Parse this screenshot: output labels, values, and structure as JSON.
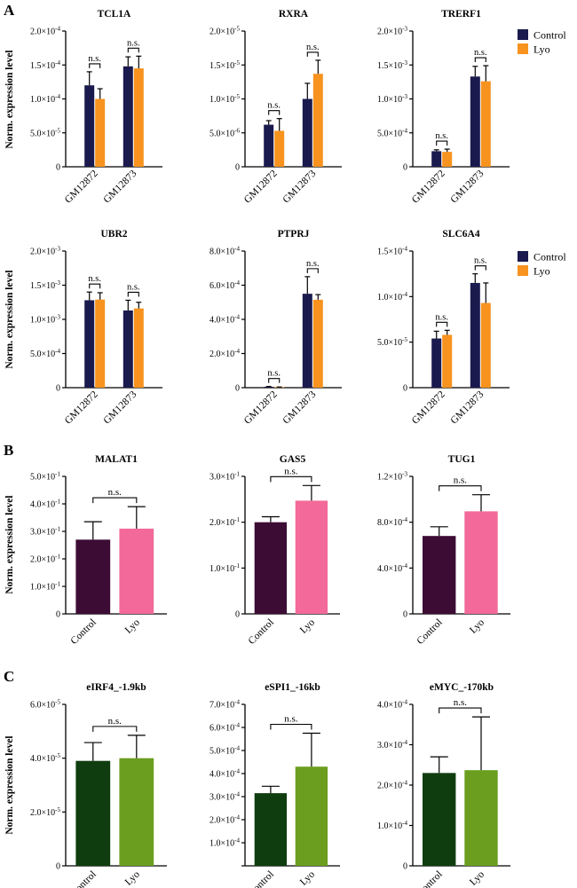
{
  "panel_labels": [
    "A",
    "B",
    "C"
  ],
  "ylabel": "Norm. expression level",
  "ns_label": "n.s.",
  "legend": {
    "control": "Control",
    "lyo": "Lyo"
  },
  "chart_data": [
    {
      "type": "bar",
      "panel": "A",
      "title": "TCL1A",
      "categories": [
        "GM12872",
        "GM12873"
      ],
      "ylabel": "Norm. expression level",
      "ylim": [
        0,
        0.0002
      ],
      "ticks": [
        [
          "0",
          0
        ],
        [
          "5.0×10-5",
          5e-05
        ],
        [
          "1.0×10-4",
          0.0001
        ],
        [
          "1.5×10-4",
          0.00015
        ],
        [
          "2.0×10-4",
          0.0002
        ]
      ],
      "series": [
        {
          "name": "Control",
          "color": "#1a1a4e",
          "values": [
            0.00012,
            0.000148
          ],
          "errors": [
            2e-05,
            1.4e-05
          ]
        },
        {
          "name": "Lyo",
          "color": "#f7931e",
          "values": [
            0.0001,
            0.000145
          ],
          "errors": [
            1.5e-05,
            1.8e-05
          ]
        }
      ],
      "annotations": [
        "n.s.",
        "n.s."
      ]
    },
    {
      "type": "bar",
      "panel": "A",
      "title": "RXRA",
      "categories": [
        "GM12872",
        "GM12873"
      ],
      "ylabel": "Norm. expression level",
      "ylim": [
        0,
        2e-05
      ],
      "ticks": [
        [
          "0",
          0
        ],
        [
          "5.0×10-6",
          5e-06
        ],
        [
          "1.0×10-5",
          1e-05
        ],
        [
          "1.5×10-5",
          1.5e-05
        ],
        [
          "2.0×10-5",
          2e-05
        ]
      ],
      "series": [
        {
          "name": "Control",
          "color": "#1a1a4e",
          "values": [
            6.2e-06,
            1e-05
          ],
          "errors": [
            6e-07,
            2.3e-06
          ]
        },
        {
          "name": "Lyo",
          "color": "#f7931e",
          "values": [
            5.3e-06,
            1.37e-05
          ],
          "errors": [
            1.8e-06,
            2e-06
          ]
        }
      ],
      "annotations": [
        "n.s.",
        "n.s."
      ]
    },
    {
      "type": "bar",
      "panel": "A",
      "title": "TRERF1",
      "categories": [
        "GM12872",
        "GM12873"
      ],
      "ylabel": "Norm. expression level",
      "ylim": [
        0,
        0.002
      ],
      "ticks": [
        [
          "0",
          0
        ],
        [
          "5.0×10-4",
          0.0005
        ],
        [
          "1.0×10-3",
          0.001
        ],
        [
          "1.5×10-3",
          0.0015
        ],
        [
          "2.0×10-3",
          0.002
        ]
      ],
      "series": [
        {
          "name": "Control",
          "color": "#1a1a4e",
          "values": [
            0.00023,
            0.00133
          ],
          "errors": [
            2e-05,
            0.00015
          ]
        },
        {
          "name": "Lyo",
          "color": "#f7931e",
          "values": [
            0.00022,
            0.00126
          ],
          "errors": [
            4e-05,
            0.00023
          ]
        }
      ],
      "annotations": [
        "n.s.",
        "n.s."
      ]
    },
    {
      "type": "bar",
      "panel": "A",
      "title": "UBR2",
      "categories": [
        "GM12872",
        "GM12873"
      ],
      "ylabel": "Norm. expression level",
      "ylim": [
        0,
        0.002
      ],
      "ticks": [
        [
          "0",
          0
        ],
        [
          "5.0×10-4",
          0.0005
        ],
        [
          "1.0×10-3",
          0.001
        ],
        [
          "1.5×10-3",
          0.0015
        ],
        [
          "2.0×10-3",
          0.002
        ]
      ],
      "series": [
        {
          "name": "Control",
          "color": "#1a1a4e",
          "values": [
            0.00128,
            0.00113
          ],
          "errors": [
            0.00012,
            0.00015
          ]
        },
        {
          "name": "Lyo",
          "color": "#f7931e",
          "values": [
            0.00129,
            0.00116
          ],
          "errors": [
            0.0001,
            9e-05
          ]
        }
      ],
      "annotations": [
        "n.s.",
        "n.s."
      ]
    },
    {
      "type": "bar",
      "panel": "A",
      "title": "PTPRJ",
      "categories": [
        "GM12872",
        "GM12873"
      ],
      "ylabel": "Norm. expression level",
      "ylim": [
        0,
        0.0008
      ],
      "ticks": [
        [
          "0",
          0
        ],
        [
          "2.0×10-4",
          0.0002
        ],
        [
          "4.0×10-4",
          0.0004
        ],
        [
          "6.0×10-4",
          0.0006
        ],
        [
          "8.0×10-4",
          0.0008
        ]
      ],
      "series": [
        {
          "name": "Control",
          "color": "#1a1a4e",
          "values": [
            5e-06,
            0.00055
          ],
          "errors": [
            2e-06,
            0.0001
          ]
        },
        {
          "name": "Lyo",
          "color": "#f7931e",
          "values": [
            3e-06,
            0.000515
          ],
          "errors": [
            1e-06,
            3e-05
          ]
        }
      ],
      "annotations": [
        "n.s.",
        "n.s."
      ]
    },
    {
      "type": "bar",
      "panel": "A",
      "title": "SLC6A4",
      "categories": [
        "GM12872",
        "GM12873"
      ],
      "ylabel": "Norm. expression level",
      "ylim": [
        0,
        0.00015
      ],
      "ticks": [
        [
          "0",
          0
        ],
        [
          "5.0×10-5",
          5e-05
        ],
        [
          "1.0×10-4",
          0.0001
        ],
        [
          "1.5×10-4",
          0.00015
        ]
      ],
      "series": [
        {
          "name": "Control",
          "color": "#1a1a4e",
          "values": [
            5.4e-05,
            0.000115
          ],
          "errors": [
            8e-06,
            1e-05
          ]
        },
        {
          "name": "Lyo",
          "color": "#f7931e",
          "values": [
            5.8e-05,
            9.3e-05
          ],
          "errors": [
            5e-06,
            2.2e-05
          ]
        }
      ],
      "annotations": [
        "n.s.",
        "n.s."
      ]
    },
    {
      "type": "bar",
      "panel": "B",
      "title": "MALAT1",
      "categories": [
        "Control",
        "Lyo"
      ],
      "ylabel": "Norm. expression level",
      "ylim": [
        0,
        0.5
      ],
      "ticks": [
        [
          "0",
          0
        ],
        [
          "1.0×10-1",
          0.1
        ],
        [
          "2.0×10-1",
          0.2
        ],
        [
          "3.0×10-1",
          0.3
        ],
        [
          "4.0×10-1",
          0.4
        ],
        [
          "5.0×10-1",
          0.5
        ]
      ],
      "values": [
        0.27,
        0.31
      ],
      "errors": [
        0.065,
        0.08
      ],
      "colors": [
        "#3d0c35",
        "#f3699a"
      ],
      "annotations": [
        "n.s."
      ]
    },
    {
      "type": "bar",
      "panel": "B",
      "title": "GAS5",
      "categories": [
        "Control",
        "Lyo"
      ],
      "ylabel": "Norm. expression level",
      "ylim": [
        0,
        0.3
      ],
      "ticks": [
        [
          "0",
          0
        ],
        [
          "1.0×10-1",
          0.1
        ],
        [
          "2.0×10-1",
          0.2
        ],
        [
          "3.0×10-1",
          0.3
        ]
      ],
      "values": [
        0.2,
        0.247
      ],
      "errors": [
        0.012,
        0.033
      ],
      "colors": [
        "#3d0c35",
        "#f3699a"
      ],
      "annotations": [
        "n.s."
      ]
    },
    {
      "type": "bar",
      "panel": "B",
      "title": "TUG1",
      "categories": [
        "Control",
        "Lyo"
      ],
      "ylabel": "Norm. expression level",
      "ylim": [
        0,
        0.0012
      ],
      "ticks": [
        [
          "0",
          0
        ],
        [
          "4.0×10-4",
          0.0004
        ],
        [
          "8.0×10-4",
          0.0008
        ],
        [
          "1.2×10-3",
          0.0012
        ]
      ],
      "values": [
        0.00068,
        0.000895
      ],
      "errors": [
        8e-05,
        0.000145
      ],
      "colors": [
        "#3d0c35",
        "#f3699a"
      ],
      "annotations": [
        "n.s."
      ]
    },
    {
      "type": "bar",
      "panel": "C",
      "title": "eIRF4_-1.9kb",
      "categories": [
        "Control",
        "Lyo"
      ],
      "ylabel": "Norm. expression level",
      "ylim": [
        0,
        6e-05
      ],
      "ticks": [
        [
          "0",
          0
        ],
        [
          "2.0×10-5",
          2e-05
        ],
        [
          "4.0×10-5",
          4e-05
        ],
        [
          "6.0×10-5",
          6e-05
        ]
      ],
      "values": [
        3.9e-05,
        4e-05
      ],
      "errors": [
        6.8e-06,
        8.5e-06
      ],
      "colors": [
        "#0f3d0f",
        "#6b9e1f"
      ],
      "annotations": [
        "n.s."
      ]
    },
    {
      "type": "bar",
      "panel": "C",
      "title": "eSPI1_-16kb",
      "categories": [
        "Control",
        "Lyo"
      ],
      "ylabel": "Norm. expression level",
      "ylim": [
        0,
        0.0007
      ],
      "ticks": [
        [
          "1.0×10-4",
          0.0001
        ],
        [
          "2.0×10-4",
          0.0002
        ],
        [
          "3.0×10-4",
          0.0003
        ],
        [
          "4.0×10-4",
          0.0004
        ],
        [
          "5.0×10-4",
          0.0005
        ],
        [
          "6.0×10-4",
          0.0006
        ],
        [
          "7.0×10-4",
          0.0007
        ]
      ],
      "values": [
        0.000315,
        0.00043
      ],
      "errors": [
        3e-05,
        0.000145
      ],
      "colors": [
        "#0f3d0f",
        "#6b9e1f"
      ],
      "annotations": [
        "n.s."
      ]
    },
    {
      "type": "bar",
      "panel": "C",
      "title": "eMYC_-170kb",
      "categories": [
        "Control",
        "Lyo"
      ],
      "ylabel": "Norm. expression level",
      "ylim": [
        0,
        0.0004
      ],
      "ticks": [
        [
          "0",
          0
        ],
        [
          "1.0×10-4",
          0.0001
        ],
        [
          "2.0×10-4",
          0.0002
        ],
        [
          "3.0×10-4",
          0.0003
        ],
        [
          "4.0×10-4",
          0.0004
        ]
      ],
      "values": [
        0.00023,
        0.000237
      ],
      "errors": [
        4e-05,
        0.000132
      ],
      "colors": [
        "#0f3d0f",
        "#6b9e1f"
      ],
      "annotations": [
        "n.s."
      ]
    }
  ]
}
